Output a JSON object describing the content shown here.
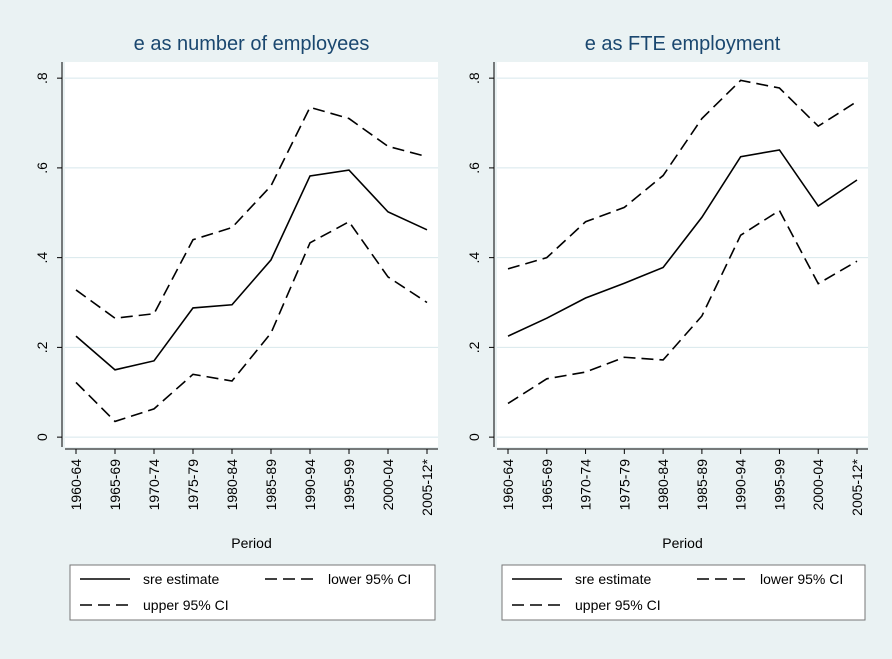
{
  "chart_data": [
    {
      "type": "line",
      "title": "e as number of employees",
      "x_label": "Period",
      "categories": [
        "1960-64",
        "1965-69",
        "1970-74",
        "1975-79",
        "1980-84",
        "1985-89",
        "1990-94",
        "1995-99",
        "2000-04",
        "2005-12*"
      ],
      "ylim": [
        -0.022,
        0.836
      ],
      "yticks": [
        0,
        {
          "value": 0.2,
          "label": ".2"
        },
        {
          "value": 0.4,
          "label": ".4"
        },
        {
          "value": 0.6,
          "label": ".6"
        },
        {
          "value": 0.8,
          "label": ".8"
        }
      ],
      "grid": true,
      "series": [
        {
          "name": "sre estimate",
          "color": "#000000",
          "line_style": "solid",
          "values": [
            0.225,
            0.15,
            0.17,
            0.288,
            0.295,
            0.395,
            0.582,
            0.595,
            0.502,
            0.462
          ]
        },
        {
          "name": "lower 95% CI",
          "color": "#000000",
          "line_style": "dashed",
          "values": [
            0.122,
            0.035,
            0.063,
            0.14,
            0.125,
            0.232,
            0.433,
            0.48,
            0.357,
            0.3
          ]
        },
        {
          "name": "upper 95% CI",
          "color": "#000000",
          "line_style": "dashed",
          "values": [
            0.328,
            0.265,
            0.275,
            0.44,
            0.467,
            0.56,
            0.735,
            0.71,
            0.648,
            0.625
          ]
        }
      ]
    },
    {
      "type": "line",
      "title": "e as FTE employment",
      "x_label": "Period",
      "categories": [
        "1960-64",
        "1965-69",
        "1970-74",
        "1975-79",
        "1980-84",
        "1985-89",
        "1990-94",
        "1995-99",
        "2000-04",
        "2005-12*"
      ],
      "ylim": [
        -0.022,
        0.836
      ],
      "yticks": [
        0,
        {
          "value": 0.2,
          "label": ".2"
        },
        {
          "value": 0.4,
          "label": ".4"
        },
        {
          "value": 0.6,
          "label": ".6"
        },
        {
          "value": 0.8,
          "label": ".8"
        }
      ],
      "grid": true,
      "series": [
        {
          "name": "sre estimate",
          "color": "#000000",
          "line_style": "solid",
          "values": [
            0.225,
            0.265,
            0.31,
            0.343,
            0.378,
            0.49,
            0.625,
            0.64,
            0.515,
            0.573
          ]
        },
        {
          "name": "lower 95% CI",
          "color": "#000000",
          "line_style": "dashed",
          "values": [
            0.075,
            0.13,
            0.145,
            0.178,
            0.172,
            0.27,
            0.45,
            0.505,
            0.342,
            0.392
          ]
        },
        {
          "name": "upper 95% CI",
          "color": "#000000",
          "line_style": "dashed",
          "values": [
            0.375,
            0.4,
            0.48,
            0.512,
            0.583,
            0.71,
            0.795,
            0.778,
            0.693,
            0.748
          ]
        }
      ]
    }
  ]
}
